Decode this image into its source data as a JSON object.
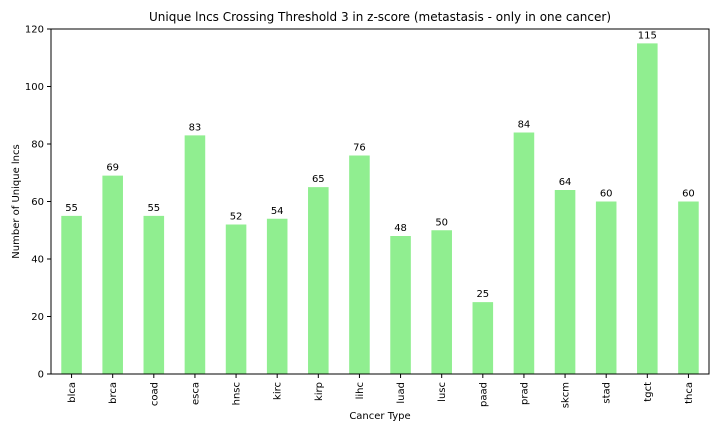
{
  "chart_data": {
    "type": "bar",
    "title": "Unique lncs Crossing Threshold 3 in z-score (metastasis - only in one cancer)",
    "xlabel": "Cancer Type",
    "ylabel": "Number of Unique lncs",
    "categories": [
      "blca",
      "brca",
      "coad",
      "esca",
      "hnsc",
      "kirc",
      "kirp",
      "lihc",
      "luad",
      "lusc",
      "paad",
      "prad",
      "skcm",
      "stad",
      "tgct",
      "thca"
    ],
    "values": [
      55,
      69,
      55,
      83,
      52,
      54,
      65,
      76,
      48,
      50,
      25,
      84,
      64,
      60,
      115,
      60
    ],
    "ylim": [
      0,
      120
    ],
    "yticks": [
      0,
      20,
      40,
      60,
      80,
      100,
      120
    ],
    "bar_color": "#90ee90",
    "grid": false,
    "legend": "none"
  }
}
